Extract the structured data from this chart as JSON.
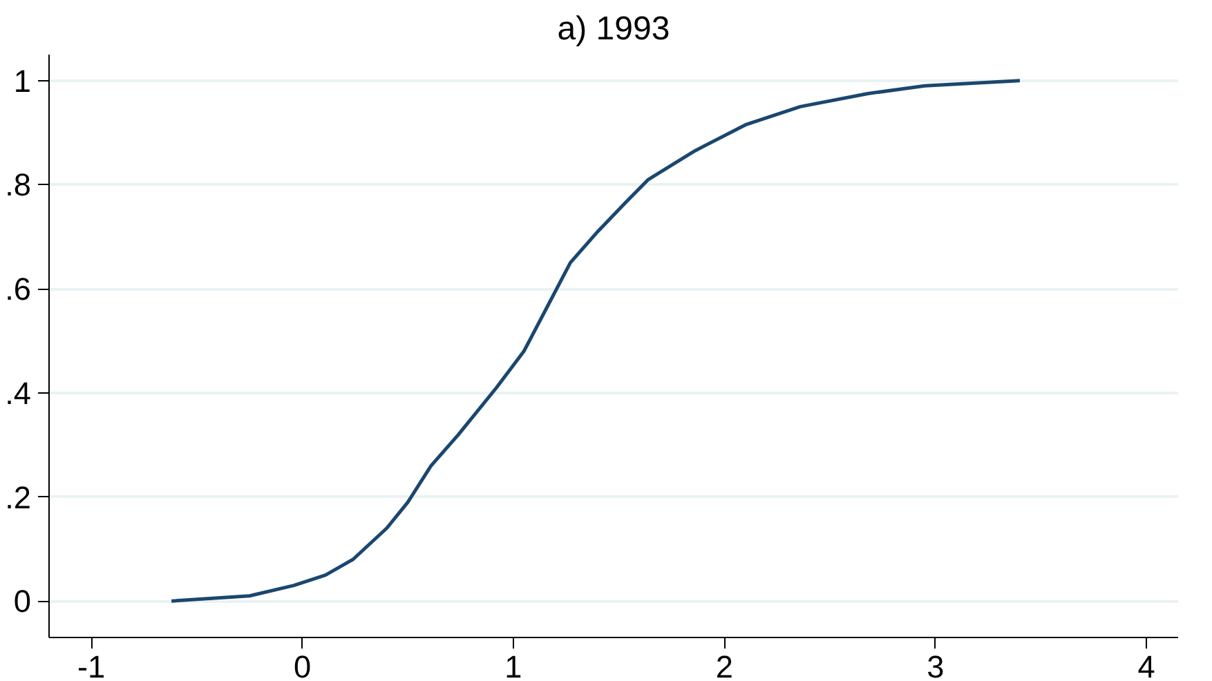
{
  "chart_data": {
    "type": "line",
    "title": "a) 1993",
    "x": [
      -0.62,
      -0.25,
      -0.04,
      0.11,
      0.24,
      0.4,
      0.5,
      0.61,
      0.74,
      0.92,
      1.05,
      1.16,
      1.27,
      1.4,
      1.53,
      1.64,
      1.86,
      2.1,
      2.36,
      2.68,
      2.95,
      3.4
    ],
    "series": [
      {
        "color": "#1a476f",
        "values": [
          0,
          0.01,
          0.03,
          0.05,
          0.08,
          0.14,
          0.19,
          0.26,
          0.32,
          0.41,
          0.48,
          0.565,
          0.65,
          0.71,
          0.765,
          0.81,
          0.865,
          0.915,
          0.95,
          0.975,
          0.99,
          1.0
        ]
      }
    ],
    "xlim": [
      -1.2,
      4.15
    ],
    "ylim": [
      -0.07,
      1.05
    ],
    "xticks": [
      -1,
      0,
      1,
      2,
      3,
      4
    ],
    "yticks": [
      0,
      {
        "value": 0.2,
        "label": ".2"
      },
      {
        "value": 0.4,
        "label": ".4"
      },
      {
        "value": 0.6,
        "label": ".6"
      },
      {
        "value": 0.8,
        "label": ".8"
      },
      1
    ],
    "grid": "y",
    "marker": "none",
    "line_style": "solid"
  }
}
